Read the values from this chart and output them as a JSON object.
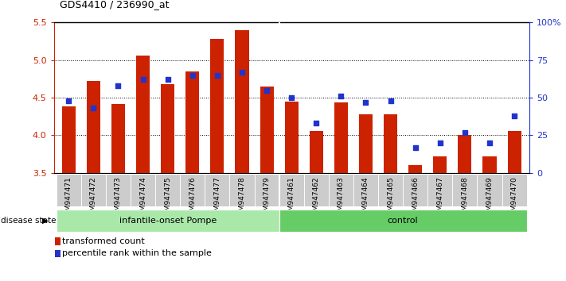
{
  "title": "GDS4410 / 236990_at",
  "samples": [
    "GSM947471",
    "GSM947472",
    "GSM947473",
    "GSM947474",
    "GSM947475",
    "GSM947476",
    "GSM947477",
    "GSM947478",
    "GSM947479",
    "GSM947461",
    "GSM947462",
    "GSM947463",
    "GSM947464",
    "GSM947465",
    "GSM947466",
    "GSM947467",
    "GSM947468",
    "GSM947469",
    "GSM947470"
  ],
  "transformed_count": [
    4.38,
    4.72,
    4.42,
    5.06,
    4.68,
    4.85,
    5.28,
    5.4,
    4.65,
    4.45,
    4.06,
    4.44,
    4.28,
    4.28,
    3.6,
    3.72,
    4.0,
    3.72,
    4.06
  ],
  "percentile_rank": [
    48,
    43,
    58,
    62,
    62,
    65,
    65,
    67,
    55,
    50,
    33,
    51,
    47,
    48,
    17,
    20,
    27,
    20,
    38
  ],
  "groups": [
    {
      "label": "infantile-onset Pompe",
      "start": 0,
      "end": 9,
      "color": "#aae8aa"
    },
    {
      "label": "control",
      "start": 9,
      "end": 19,
      "color": "#66cc66"
    }
  ],
  "ylim": [
    3.5,
    5.5
  ],
  "yticks": [
    3.5,
    4.0,
    4.5,
    5.0,
    5.5
  ],
  "right_ylim": [
    0,
    100
  ],
  "right_yticks": [
    0,
    25,
    50,
    75,
    100
  ],
  "right_yticklabels": [
    "0",
    "25",
    "50",
    "75",
    "100%"
  ],
  "bar_color": "#cc2200",
  "dot_color": "#2233cc",
  "tick_bg_color": "#cccccc",
  "disease_state_label": "disease state",
  "legend_bar": "transformed count",
  "legend_dot": "percentile rank within the sample",
  "bar_width": 0.55,
  "n_pompe": 9,
  "n_total": 19
}
